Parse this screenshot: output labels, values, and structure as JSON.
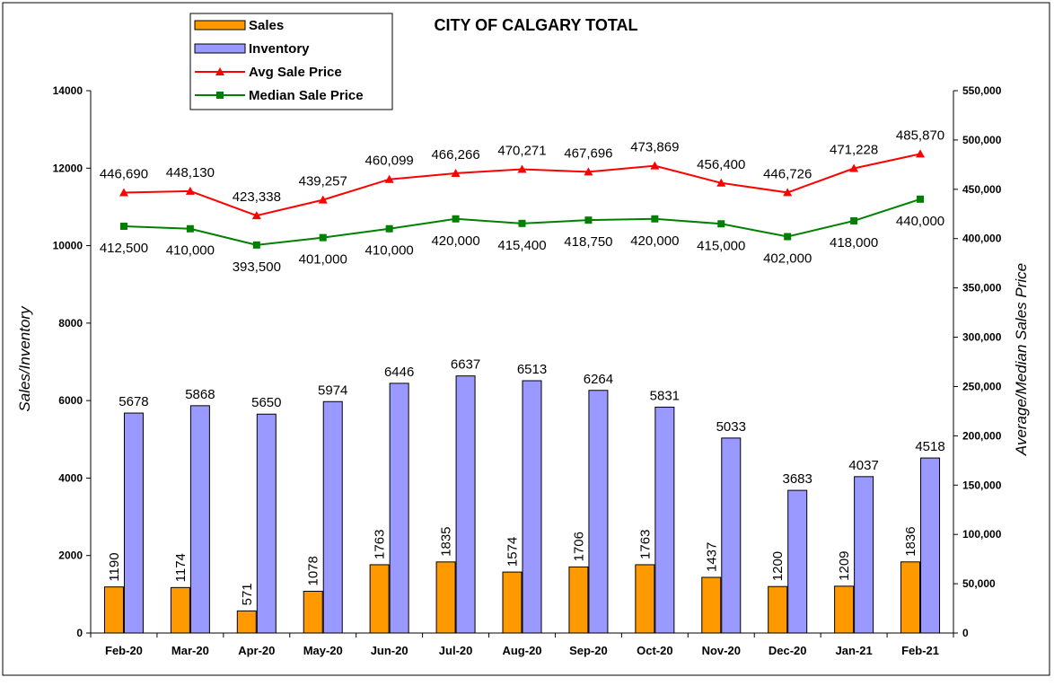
{
  "chart_data": {
    "type": "bar",
    "title": "CITY OF CALGARY TOTAL",
    "ylabel": "Sales/Inventory",
    "y2label": "Average/Median Sales Price",
    "categories": [
      "Feb-20",
      "Mar-20",
      "Apr-20",
      "May-20",
      "Jun-20",
      "Jul-20",
      "Aug-20",
      "Sep-20",
      "Oct-20",
      "Nov-20",
      "Dec-20",
      "Jan-21",
      "Feb-21"
    ],
    "ylim": [
      0,
      14000
    ],
    "y2lim": [
      0,
      550000
    ],
    "yticks": [
      "0",
      "2000",
      "4000",
      "6000",
      "8000",
      "10000",
      "12000",
      "14000"
    ],
    "y2ticks": [
      "0",
      "50,000",
      "100,000",
      "150,000",
      "200,000",
      "250,000",
      "300,000",
      "350,000",
      "400,000",
      "450,000",
      "500,000",
      "550,000"
    ],
    "legend_position": "top-left",
    "series": [
      {
        "name": "Sales",
        "kind": "bar",
        "axis": "left",
        "color": "#FF9900",
        "values": [
          1190,
          1174,
          571,
          1078,
          1763,
          1835,
          1574,
          1706,
          1763,
          1437,
          1200,
          1209,
          1836
        ],
        "labels": [
          "1190",
          "1174",
          "571",
          "1078",
          "1763",
          "1835",
          "1574",
          "1706",
          "1763",
          "1437",
          "1200",
          "1209",
          "1836"
        ]
      },
      {
        "name": "Inventory",
        "kind": "bar",
        "axis": "left",
        "color": "#9999FF",
        "values": [
          5678,
          5868,
          5650,
          5974,
          6446,
          6637,
          6513,
          6264,
          5831,
          5033,
          3683,
          4037,
          4518
        ],
        "labels": [
          "5678",
          "5868",
          "5650",
          "5974",
          "6446",
          "6637",
          "6513",
          "6264",
          "5831",
          "5033",
          "3683",
          "4037",
          "4518"
        ]
      },
      {
        "name": "Avg Sale Price",
        "kind": "line",
        "axis": "right",
        "color": "#FF0000",
        "marker": "triangle",
        "values": [
          446690,
          448130,
          423338,
          439257,
          460099,
          466266,
          470271,
          467696,
          473869,
          456400,
          446726,
          471228,
          485870
        ],
        "labels": [
          "446,690",
          "448,130",
          "423,338",
          "439,257",
          "460,099",
          "466,266",
          "470,271",
          "467,696",
          "473,869",
          "456,400",
          "446,726",
          "471,228",
          "485,870"
        ]
      },
      {
        "name": "Median Sale Price",
        "kind": "line",
        "axis": "right",
        "color": "#008000",
        "marker": "square",
        "values": [
          412500,
          410000,
          393500,
          401000,
          410000,
          420000,
          415400,
          418750,
          420000,
          415000,
          402000,
          418000,
          440000
        ],
        "labels": [
          "412,500",
          "410,000",
          "393,500",
          "401,000",
          "410,000",
          "420,000",
          "415,400",
          "418,750",
          "420,000",
          "415,000",
          "402,000",
          "418,000",
          "440,000"
        ]
      }
    ]
  }
}
